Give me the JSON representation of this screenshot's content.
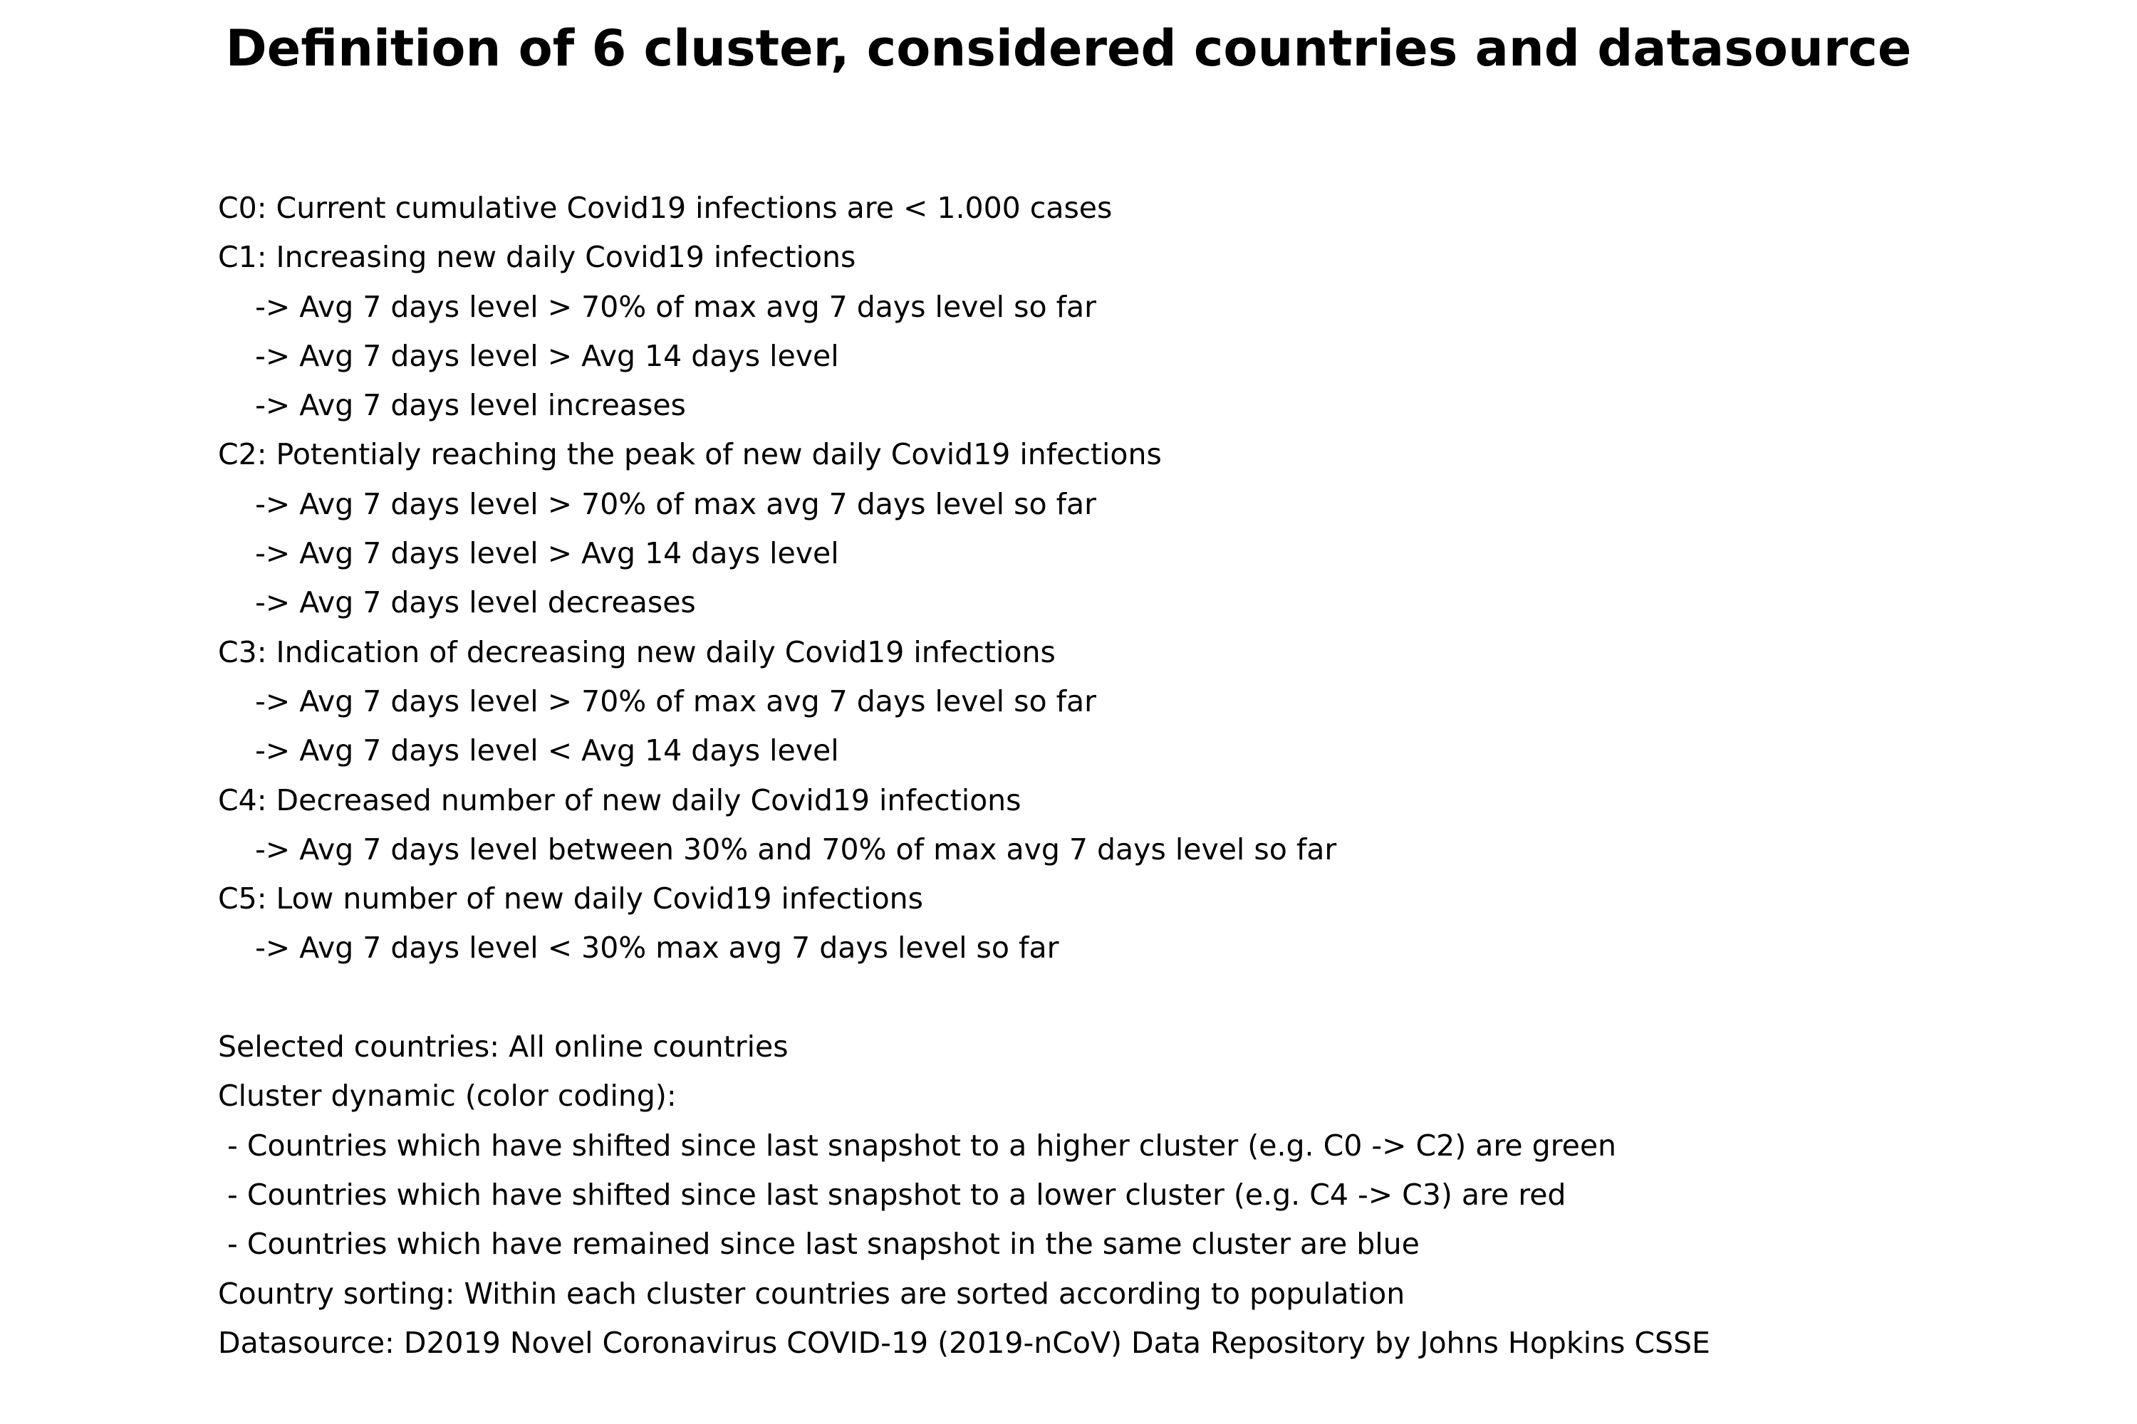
{
  "title": "Definition of 6 cluster, considered countries and datasource",
  "lines": [
    "C0: Current cumulative Covid19 infections are < 1.000 cases",
    "C1: Increasing new daily Covid19 infections",
    "    -> Avg 7 days level > 70% of max avg 7 days level so far",
    "    -> Avg 7 days level > Avg 14 days level",
    "    -> Avg 7 days level increases",
    "C2: Potentialy reaching the peak of new daily Covid19 infections",
    "    -> Avg 7 days level > 70% of max avg 7 days level so far",
    "    -> Avg 7 days level > Avg 14 days level",
    "    -> Avg 7 days level decreases",
    "C3: Indication of decreasing new daily Covid19 infections",
    "    -> Avg 7 days level > 70% of max avg 7 days level so far",
    "    -> Avg 7 days level < Avg 14 days level",
    "C4: Decreased number of new daily Covid19 infections",
    "    -> Avg 7 days level between 30% and 70% of max avg 7 days level so far",
    "C5: Low number of new daily Covid19 infections",
    "    -> Avg 7 days level < 30% max avg 7 days level so far",
    "",
    "Selected countries: All online countries",
    "Cluster dynamic (color coding):",
    " - Countries which have shifted since last snapshot to a higher cluster (e.g. C0 -> C2) are green",
    " - Countries which have shifted since last snapshot to a lower cluster (e.g. C4 -> C3) are red",
    " - Countries which have remained since last snapshot in the same cluster are blue",
    "Country sorting: Within each cluster countries are sorted according to population",
    "Datasource: D2019 Novel Coronavirus COVID-19 (2019-nCoV) Data Repository by Johns Hopkins CSSE"
  ]
}
